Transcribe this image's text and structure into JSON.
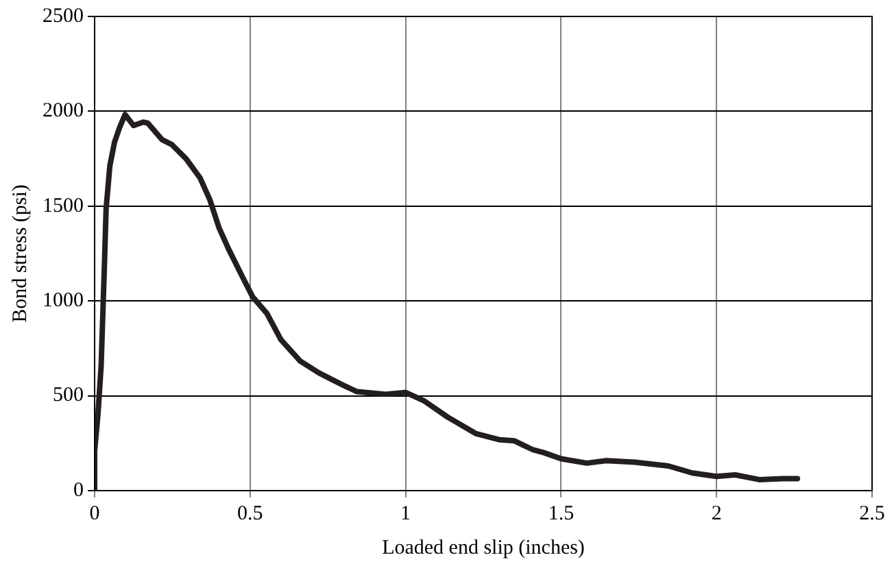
{
  "chart_data": {
    "type": "line",
    "xlabel": "Loaded end slip (inches)",
    "ylabel": "Bond stress (psi)",
    "xlim": [
      0,
      2.5
    ],
    "xticks": [
      0,
      0.5,
      1,
      1.5,
      2,
      2.5
    ],
    "ylim": [
      0,
      2500
    ],
    "yticks": [
      0,
      500,
      1000,
      1500,
      2000,
      2500
    ],
    "grid": true,
    "legend": false,
    "marker": "none",
    "line_style": "solid",
    "series": [
      {
        "color": "#231f20",
        "x": [
          0,
          0,
          0.011,
          0.021,
          0.031,
          0.037,
          0.049,
          0.064,
          0.08,
          0.098,
          0.125,
          0.156,
          0.171,
          0.217,
          0.248,
          0.294,
          0.339,
          0.37,
          0.4,
          0.431,
          0.477,
          0.508,
          0.554,
          0.599,
          0.661,
          0.722,
          0.798,
          0.844,
          0.936,
          1.0,
          1.058,
          1.135,
          1.227,
          1.303,
          1.349,
          1.41,
          1.445,
          1.5,
          1.583,
          1.645,
          1.737,
          1.845,
          1.922,
          2.0,
          2.06,
          2.137,
          2.214,
          2.26
        ],
        "values": [
          0,
          206,
          407,
          658,
          1160,
          1486,
          1712,
          1837,
          1913,
          1983,
          1925,
          1943,
          1938,
          1850,
          1825,
          1750,
          1649,
          1536,
          1386,
          1273,
          1122,
          1022,
          934,
          796,
          683,
          620,
          557,
          522,
          508,
          518,
          475,
          388,
          300,
          268,
          263,
          215,
          200,
          168,
          145,
          158,
          150,
          130,
          93,
          75,
          83,
          58,
          63,
          63
        ]
      }
    ]
  }
}
